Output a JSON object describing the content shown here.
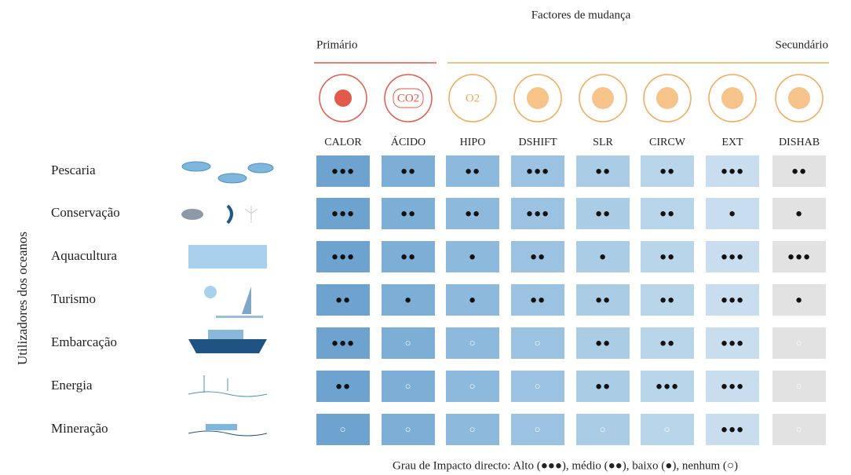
{
  "header": {
    "title": "Factores de mudança",
    "primary": "Primário",
    "secondary": "Secundário"
  },
  "side_label": "Utilizadores dos oceanos",
  "columns": [
    {
      "label": "CALOR",
      "group": "primary"
    },
    {
      "label": "ÁCIDO",
      "group": "primary",
      "icon_text": "CO2"
    },
    {
      "label": "HIPO",
      "group": "secondary",
      "icon_text": "O2"
    },
    {
      "label": "DSHIFT",
      "group": "secondary"
    },
    {
      "label": "SLR",
      "group": "secondary"
    },
    {
      "label": "CIRCW",
      "group": "secondary"
    },
    {
      "label": "EXT",
      "group": "secondary"
    },
    {
      "label": "DISHAB",
      "group": "secondary"
    }
  ],
  "rows": [
    {
      "label": "Pescaria",
      "cells": [
        "●●●",
        "●●",
        "●●",
        "●●●",
        "●●",
        "●●",
        "●●●",
        "●●"
      ]
    },
    {
      "label": "Conservação",
      "cells": [
        "●●●",
        "●●",
        "●●",
        "●●●",
        "●●",
        "●●",
        "●",
        "●"
      ]
    },
    {
      "label": "Aquacultura",
      "cells": [
        "●●●",
        "●●",
        "●",
        "●●",
        "●",
        "●●",
        "●●●",
        "●●●"
      ]
    },
    {
      "label": "Turismo",
      "cells": [
        "●●",
        "●",
        "●",
        "●●",
        "●●",
        "●●",
        "●●●",
        "●"
      ]
    },
    {
      "label": "Embarcação",
      "cells": [
        "●●●",
        "○",
        "○",
        "○",
        "●●",
        "●●",
        "●●●",
        "○"
      ]
    },
    {
      "label": "Energia",
      "cells": [
        "●●",
        "○",
        "○",
        "○",
        "●●",
        "●●●",
        "●●●",
        "○"
      ]
    },
    {
      "label": "Mineração",
      "cells": [
        "○",
        "○",
        "○",
        "○",
        "○",
        "○",
        "●●●",
        "○"
      ]
    }
  ],
  "footer": "Grau de Impacto directo: Alto (●●●), médio (●●), baixo (●), nenhum (○)"
}
